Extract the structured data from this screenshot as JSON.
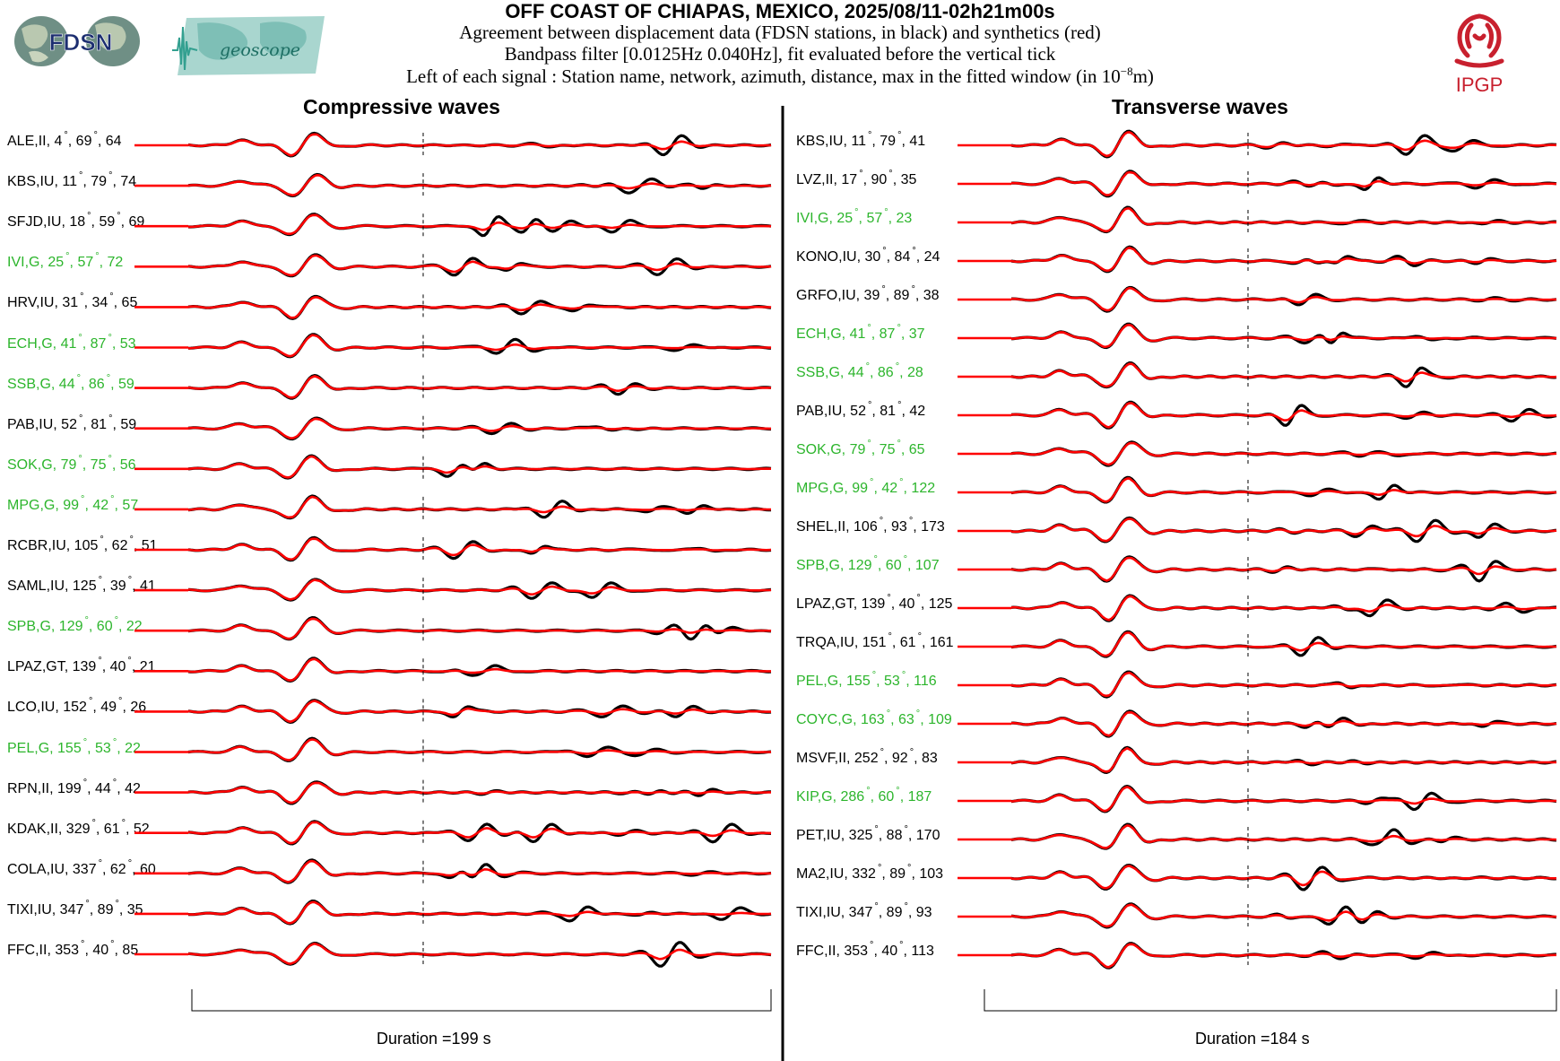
{
  "header": {
    "title": "OFF COAST OF CHIAPAS, MEXICO, 2025/08/11-02h21m00s",
    "line1": "Agreement between displacement data (FDSN stations, in black) and synthetics (red)",
    "line2": "Bandpass filter [0.0125Hz 0.040Hz], fit evaluated before the vertical tick",
    "line3_prefix": "Left of each signal : Station name, network, azimuth, distance, max in the fitted window (in 10",
    "line3_exp": "−8",
    "line3_suffix": "m)"
  },
  "logos": {
    "fdsn": "FDSN",
    "geoscope": "geoscope",
    "ipgp": "IPGP"
  },
  "colors": {
    "data": "#000000",
    "synthetic": "#ff0000",
    "geoscope_station": "#2cb52c",
    "other_station": "#000000"
  },
  "chart_data": [
    {
      "type": "line",
      "title": "Compressive waves",
      "duration_label": "Duration =199 s",
      "duration_s": 199,
      "series": [
        {
          "name": "Data",
          "color": "#000000"
        },
        {
          "name": "Synthetics",
          "color": "#ff0000"
        }
      ],
      "stations": [
        {
          "station": "ALE",
          "network": "II",
          "azimuth": 4,
          "distance": 69,
          "max": 64,
          "geoscope": false
        },
        {
          "station": "KBS",
          "network": "IU",
          "azimuth": 11,
          "distance": 79,
          "max": 74,
          "geoscope": false
        },
        {
          "station": "SFJD",
          "network": "IU",
          "azimuth": 18,
          "distance": 59,
          "max": 69,
          "geoscope": false
        },
        {
          "station": "IVI",
          "network": "G",
          "azimuth": 25,
          "distance": 57,
          "max": 72,
          "geoscope": true
        },
        {
          "station": "HRV",
          "network": "IU",
          "azimuth": 31,
          "distance": 34,
          "max": 65,
          "geoscope": false
        },
        {
          "station": "ECH",
          "network": "G",
          "azimuth": 41,
          "distance": 87,
          "max": 53,
          "geoscope": true
        },
        {
          "station": "SSB",
          "network": "G",
          "azimuth": 44,
          "distance": 86,
          "max": 59,
          "geoscope": true
        },
        {
          "station": "PAB",
          "network": "IU",
          "azimuth": 52,
          "distance": 81,
          "max": 59,
          "geoscope": false
        },
        {
          "station": "SOK",
          "network": "G",
          "azimuth": 79,
          "distance": 75,
          "max": 56,
          "geoscope": true
        },
        {
          "station": "MPG",
          "network": "G",
          "azimuth": 99,
          "distance": 42,
          "max": 57,
          "geoscope": true
        },
        {
          "station": "RCBR",
          "network": "IU",
          "azimuth": 105,
          "distance": 62,
          "max": 51,
          "geoscope": false
        },
        {
          "station": "SAML",
          "network": "IU",
          "azimuth": 125,
          "distance": 39,
          "max": 41,
          "geoscope": false
        },
        {
          "station": "SPB",
          "network": "G",
          "azimuth": 129,
          "distance": 60,
          "max": 22,
          "geoscope": true
        },
        {
          "station": "LPAZ",
          "network": "GT",
          "azimuth": 139,
          "distance": 40,
          "max": 21,
          "geoscope": false
        },
        {
          "station": "LCO",
          "network": "IU",
          "azimuth": 152,
          "distance": 49,
          "max": 26,
          "geoscope": false
        },
        {
          "station": "PEL",
          "network": "G",
          "azimuth": 155,
          "distance": 53,
          "max": 22,
          "geoscope": true
        },
        {
          "station": "RPN",
          "network": "II",
          "azimuth": 199,
          "distance": 44,
          "max": 42,
          "geoscope": false
        },
        {
          "station": "KDAK",
          "network": "II",
          "azimuth": 329,
          "distance": 61,
          "max": 52,
          "geoscope": false
        },
        {
          "station": "COLA",
          "network": "IU",
          "azimuth": 337,
          "distance": 62,
          "max": 60,
          "geoscope": false
        },
        {
          "station": "TIXI",
          "network": "IU",
          "azimuth": 347,
          "distance": 89,
          "max": 35,
          "geoscope": false
        },
        {
          "station": "FFC",
          "network": "II",
          "azimuth": 353,
          "distance": 40,
          "max": 85,
          "geoscope": false
        }
      ]
    },
    {
      "type": "line",
      "title": "Transverse waves",
      "duration_label": "Duration =184 s",
      "duration_s": 184,
      "series": [
        {
          "name": "Data",
          "color": "#000000"
        },
        {
          "name": "Synthetics",
          "color": "#ff0000"
        }
      ],
      "stations": [
        {
          "station": "KBS",
          "network": "IU",
          "azimuth": 11,
          "distance": 79,
          "max": 41,
          "geoscope": false
        },
        {
          "station": "LVZ",
          "network": "II",
          "azimuth": 17,
          "distance": 90,
          "max": 35,
          "geoscope": false
        },
        {
          "station": "IVI",
          "network": "G",
          "azimuth": 25,
          "distance": 57,
          "max": 23,
          "geoscope": true
        },
        {
          "station": "KONO",
          "network": "IU",
          "azimuth": 30,
          "distance": 84,
          "max": 24,
          "geoscope": false
        },
        {
          "station": "GRFO",
          "network": "IU",
          "azimuth": 39,
          "distance": 89,
          "max": 38,
          "geoscope": false
        },
        {
          "station": "ECH",
          "network": "G",
          "azimuth": 41,
          "distance": 87,
          "max": 37,
          "geoscope": true
        },
        {
          "station": "SSB",
          "network": "G",
          "azimuth": 44,
          "distance": 86,
          "max": 28,
          "geoscope": true
        },
        {
          "station": "PAB",
          "network": "IU",
          "azimuth": 52,
          "distance": 81,
          "max": 42,
          "geoscope": false
        },
        {
          "station": "SOK",
          "network": "G",
          "azimuth": 79,
          "distance": 75,
          "max": 65,
          "geoscope": true
        },
        {
          "station": "MPG",
          "network": "G",
          "azimuth": 99,
          "distance": 42,
          "max": 122,
          "geoscope": true
        },
        {
          "station": "SHEL",
          "network": "II",
          "azimuth": 106,
          "distance": 93,
          "max": 173,
          "geoscope": false
        },
        {
          "station": "SPB",
          "network": "G",
          "azimuth": 129,
          "distance": 60,
          "max": 107,
          "geoscope": true
        },
        {
          "station": "LPAZ",
          "network": "GT",
          "azimuth": 139,
          "distance": 40,
          "max": 125,
          "geoscope": false
        },
        {
          "station": "TRQA",
          "network": "IU",
          "azimuth": 151,
          "distance": 61,
          "max": 161,
          "geoscope": false
        },
        {
          "station": "PEL",
          "network": "G",
          "azimuth": 155,
          "distance": 53,
          "max": 116,
          "geoscope": true
        },
        {
          "station": "COYC",
          "network": "G",
          "azimuth": 163,
          "distance": 63,
          "max": 109,
          "geoscope": true
        },
        {
          "station": "MSVF",
          "network": "II",
          "azimuth": 252,
          "distance": 92,
          "max": 83,
          "geoscope": false
        },
        {
          "station": "KIP",
          "network": "G",
          "azimuth": 286,
          "distance": 60,
          "max": 187,
          "geoscope": true
        },
        {
          "station": "PET",
          "network": "IU",
          "azimuth": 325,
          "distance": 88,
          "max": 170,
          "geoscope": false
        },
        {
          "station": "MA2",
          "network": "IU",
          "azimuth": 332,
          "distance": 89,
          "max": 103,
          "geoscope": false
        },
        {
          "station": "TIXI",
          "network": "IU",
          "azimuth": 347,
          "distance": 89,
          "max": 93,
          "geoscope": false
        },
        {
          "station": "FFC",
          "network": "II",
          "azimuth": 353,
          "distance": 40,
          "max": 113,
          "geoscope": false
        }
      ]
    }
  ]
}
